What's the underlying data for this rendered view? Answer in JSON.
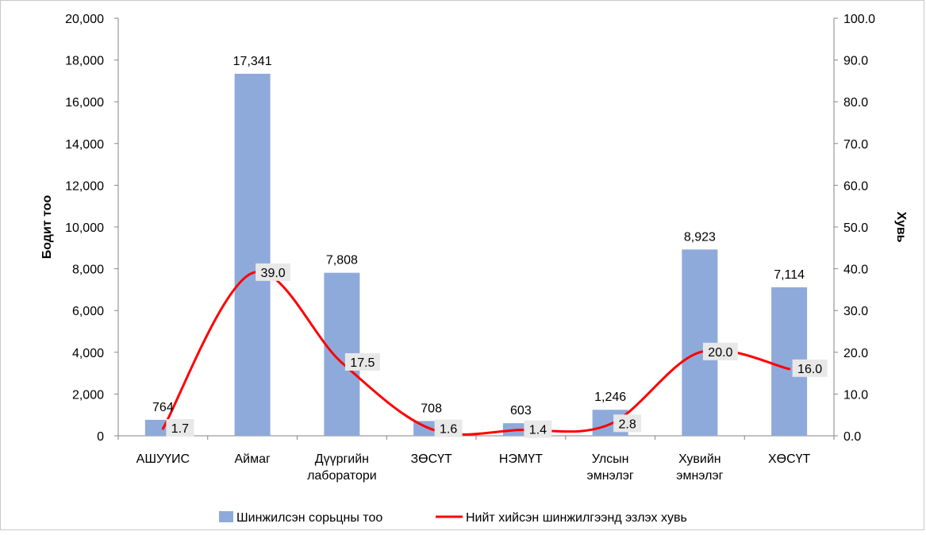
{
  "chart_data": {
    "type": "bar",
    "categories": [
      [
        "АШУҮИС"
      ],
      [
        "Аймаг"
      ],
      [
        "Дүүргийн",
        "лаборатори"
      ],
      [
        "ЗӨСҮТ"
      ],
      [
        "НЭМҮТ"
      ],
      [
        "Улсын",
        "эмнэлэг"
      ],
      [
        "Хувийн",
        "эмнэлэг"
      ],
      [
        "ХӨСҮТ"
      ]
    ],
    "series": [
      {
        "name": "Шинжилсэн сорьцны тоо",
        "type": "bar",
        "axis": "left",
        "color": "#8eaadb",
        "values": [
          764,
          17341,
          7808,
          708,
          603,
          1246,
          8923,
          7114
        ],
        "labels": [
          "764",
          "17,341",
          "7,808",
          "708",
          "603",
          "1,246",
          "8,923",
          "7,114"
        ]
      },
      {
        "name": "Нийт хийсэн шинжилгээнд эзлэх хувь",
        "type": "line",
        "axis": "right",
        "color": "#ff0000",
        "values": [
          1.7,
          39.0,
          17.5,
          1.6,
          1.4,
          2.8,
          20.0,
          16.0
        ],
        "labels": [
          "1.7",
          "39.0",
          "17.5",
          "1.6",
          "1.4",
          "2.8",
          "20.0",
          "16.0"
        ]
      }
    ],
    "ylabel": "Бодит тоо",
    "y2label": "Хувь",
    "ylim": [
      0,
      20000
    ],
    "y2lim": [
      0,
      100
    ],
    "yticks": [
      "0",
      "2,000",
      "4,000",
      "6,000",
      "8,000",
      "10,000",
      "12,000",
      "14,000",
      "16,000",
      "18,000",
      "20,000"
    ],
    "y2ticks": [
      "0.0",
      "10.0",
      "20.0",
      "30.0",
      "40.0",
      "50.0",
      "60.0",
      "70.0",
      "80.0",
      "90.0",
      "100.0"
    ],
    "grid": false,
    "legend_position": "bottom"
  }
}
